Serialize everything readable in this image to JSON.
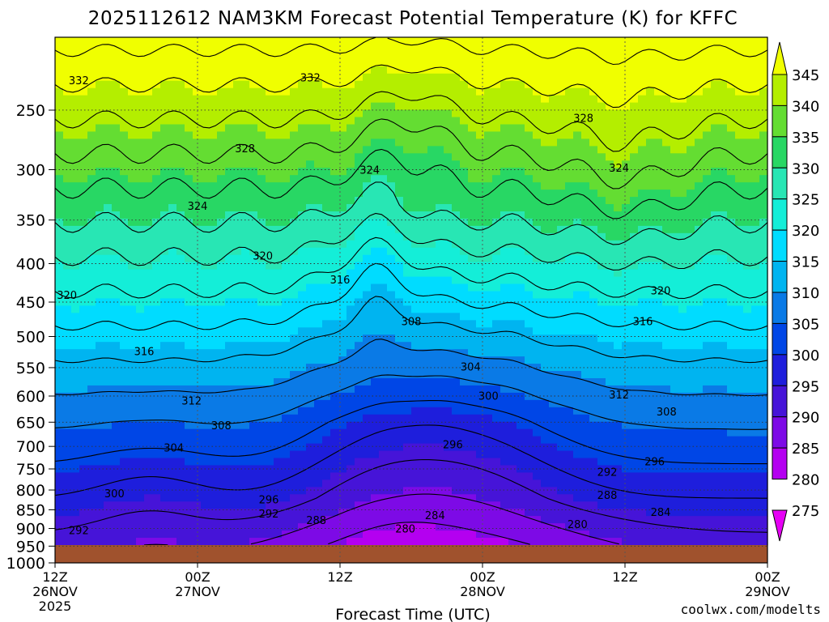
{
  "chart_data": {
    "type": "heatmap",
    "title": "2025112612 NAM3KM Forecast Potential Temperature (K) for KFFC",
    "xlabel": "Forecast Time (UTC)",
    "ylabel": "",
    "credit": "coolwx.com/modelts",
    "y_scale": "log",
    "y_inverted": true,
    "ylim": [
      1000,
      200
    ],
    "y_ticks": [
      "250",
      "300",
      "350",
      "400",
      "450",
      "500",
      "550",
      "600",
      "650",
      "700",
      "750",
      "800",
      "850",
      "900",
      "950",
      "1000"
    ],
    "x_ticks": [
      {
        "hours": 0,
        "time": "12Z",
        "date": "26NOV",
        "year": "2025"
      },
      {
        "hours": 12,
        "time": "00Z",
        "date": "27NOV",
        "year": ""
      },
      {
        "hours": 24,
        "time": "12Z",
        "date": "",
        "year": ""
      },
      {
        "hours": 36,
        "time": "00Z",
        "date": "28NOV",
        "year": ""
      },
      {
        "hours": 48,
        "time": "12Z",
        "date": "",
        "year": ""
      },
      {
        "hours": 60,
        "time": "00Z",
        "date": "29NOV",
        "year": ""
      }
    ],
    "x_range_hours": [
      0,
      60
    ],
    "grid": true,
    "colorbar": {
      "levels": [
        "345",
        "340",
        "335",
        "330",
        "325",
        "320",
        "315",
        "310",
        "305",
        "300",
        "295",
        "290",
        "285",
        "280",
        "275"
      ],
      "colors": [
        "#f0ff00",
        "#b4ee00",
        "#64dd32",
        "#28d764",
        "#28e6b4",
        "#14eed8",
        "#00dcff",
        "#00b4f0",
        "#0a7ae6",
        "#0046e6",
        "#1e1edc",
        "#4614d8",
        "#7d0ae6",
        "#b400f0",
        "#e600f5"
      ]
    },
    "contour_labels": [
      {
        "value": "332",
        "hours": 2,
        "pres": 228
      },
      {
        "value": "332",
        "hours": 21.5,
        "pres": 226
      },
      {
        "value": "328",
        "hours": 44.5,
        "pres": 256
      },
      {
        "value": "328",
        "hours": 16,
        "pres": 281
      },
      {
        "value": "324",
        "hours": 26.5,
        "pres": 300
      },
      {
        "value": "324",
        "hours": 47.5,
        "pres": 298
      },
      {
        "value": "324",
        "hours": 12,
        "pres": 335
      },
      {
        "value": "320",
        "hours": 17.5,
        "pres": 390
      },
      {
        "value": "320",
        "hours": 1,
        "pres": 440
      },
      {
        "value": "320",
        "hours": 51,
        "pres": 434
      },
      {
        "value": "316",
        "hours": 24,
        "pres": 420
      },
      {
        "value": "316",
        "hours": 49.5,
        "pres": 477
      },
      {
        "value": "316",
        "hours": 7.5,
        "pres": 523
      },
      {
        "value": "308",
        "hours": 30,
        "pres": 477
      },
      {
        "value": "304",
        "hours": 35,
        "pres": 548
      },
      {
        "value": "312",
        "hours": 11.5,
        "pres": 608
      },
      {
        "value": "312",
        "hours": 47.5,
        "pres": 597
      },
      {
        "value": "300",
        "hours": 36.5,
        "pres": 599
      },
      {
        "value": "308",
        "hours": 14,
        "pres": 656
      },
      {
        "value": "308",
        "hours": 51.5,
        "pres": 629
      },
      {
        "value": "304",
        "hours": 10,
        "pres": 702
      },
      {
        "value": "296",
        "hours": 33.5,
        "pres": 695
      },
      {
        "value": "296",
        "hours": 50.5,
        "pres": 733
      },
      {
        "value": "292",
        "hours": 46.5,
        "pres": 757
      },
      {
        "value": "300",
        "hours": 5,
        "pres": 808
      },
      {
        "value": "296",
        "hours": 18,
        "pres": 823
      },
      {
        "value": "292",
        "hours": 18,
        "pres": 860
      },
      {
        "value": "288",
        "hours": 46.5,
        "pres": 812
      },
      {
        "value": "284",
        "hours": 51,
        "pres": 855
      },
      {
        "value": "288",
        "hours": 22,
        "pres": 877
      },
      {
        "value": "284",
        "hours": 32,
        "pres": 864
      },
      {
        "value": "280",
        "hours": 29.5,
        "pres": 900
      },
      {
        "value": "280",
        "hours": 44,
        "pres": 888
      },
      {
        "value": "292",
        "hours": 2,
        "pres": 905
      }
    ]
  },
  "colors": {
    "ground": "#a0522d",
    "axis": "#000000",
    "credit": "#e8322a",
    "grid": "#333333"
  }
}
